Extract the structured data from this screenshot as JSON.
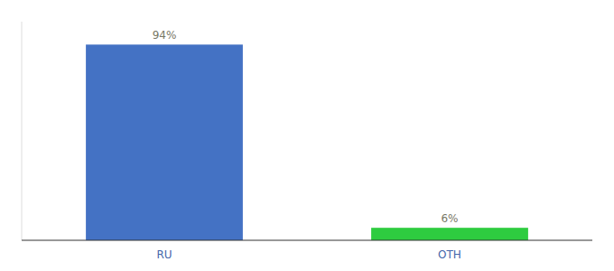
{
  "chart_data": {
    "type": "bar",
    "categories": [
      "RU",
      "OTH"
    ],
    "values": [
      94,
      6
    ],
    "value_labels": [
      "94%",
      "6%"
    ],
    "colors": [
      "#4472c4",
      "#2ecc40"
    ],
    "ylim": [
      0,
      105
    ],
    "grid": false,
    "data_labels": true,
    "tick_labels": "x"
  }
}
